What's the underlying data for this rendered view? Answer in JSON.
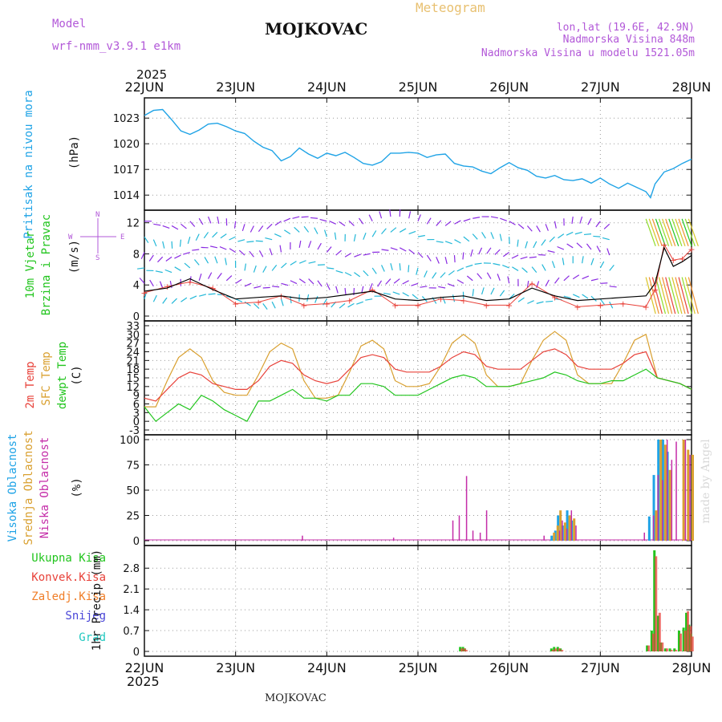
{
  "header": {
    "model_label": "Model",
    "model_name": "wrf-nmm_v3.9.1 e1km",
    "station": "MOJKOVAC",
    "product": "Meteogram",
    "coords": "lon,lat (19.6E, 42.9N)",
    "elevation": "Nadmorska Visina 848m",
    "model_elevation": "Nadmorska Visina u modelu 1521.05m"
  },
  "footer": {
    "station": "MOJKOVAC",
    "credit": "made by Angel"
  },
  "time_axis": {
    "year": "2025",
    "labels": [
      "22JUN",
      "23JUN",
      "24JUN",
      "25JUN",
      "26JUN",
      "27JUN",
      "28JUN"
    ]
  },
  "colors": {
    "pressure": "#1fa3e6",
    "wind_speed": "#000000",
    "wind_gust": "#e8423a",
    "t2m": "#e8423a",
    "sfc": "#d9a030",
    "dewpt": "#22c51e",
    "high_cloud": "#1fa3e6",
    "mid_cloud": "#d9a030",
    "low_cloud": "#c42ca8",
    "total_precip": "#22c51e",
    "conv_precip": "#e8423a",
    "frz_precip": "#f07e28",
    "snow": "#4a46d8",
    "hail": "#22c8c0"
  },
  "chart_data": [
    {
      "type": "line",
      "panel": "pressure",
      "ylabel": [
        "Pritisak na nivou mora",
        "(hPa)"
      ],
      "yticks": [
        1014,
        1017,
        1020,
        1023
      ],
      "ylim": [
        1012.8,
        1024.8
      ],
      "x_days": [
        0,
        0.1,
        0.2,
        0.3,
        0.4,
        0.5,
        0.6,
        0.7,
        0.8,
        0.9,
        1.0,
        1.1,
        1.2,
        1.3,
        1.4,
        1.5,
        1.6,
        1.7,
        1.8,
        1.9,
        2.0,
        2.1,
        2.2,
        2.3,
        2.4,
        2.5,
        2.6,
        2.7,
        2.8,
        2.9,
        3.0,
        3.1,
        3.2,
        3.3,
        3.4,
        3.5,
        3.6,
        3.7,
        3.8,
        3.9,
        4.0,
        4.1,
        4.2,
        4.3,
        4.4,
        4.5,
        4.6,
        4.7,
        4.8,
        4.9,
        5.0,
        5.1,
        5.2,
        5.3,
        5.4,
        5.5,
        5.55,
        5.6,
        5.7,
        5.8,
        5.9,
        6.0
      ],
      "series": [
        {
          "values": [
            1023.3,
            1023.9,
            1024.0,
            1022.8,
            1021.5,
            1021.1,
            1021.6,
            1022.3,
            1022.4,
            1022.0,
            1021.5,
            1021.2,
            1020.3,
            1019.6,
            1019.2,
            1018.0,
            1018.5,
            1019.5,
            1018.8,
            1018.3,
            1018.9,
            1018.6,
            1019.0,
            1018.4,
            1017.7,
            1017.5,
            1017.9,
            1018.9,
            1018.9,
            1019.0,
            1018.9,
            1018.4,
            1018.7,
            1018.8,
            1017.7,
            1017.4,
            1017.3,
            1016.8,
            1016.5,
            1017.2,
            1017.8,
            1017.2,
            1016.9,
            1016.2,
            1016.0,
            1016.3,
            1015.8,
            1015.7,
            1015.9,
            1015.4,
            1016.0,
            1015.3,
            1014.8,
            1015.4,
            1014.9,
            1014.4,
            1013.7,
            1015.3,
            1016.7,
            1017.1,
            1017.7,
            1018.2
          ]
        }
      ]
    },
    {
      "type": "line",
      "panel": "wind",
      "ylabel": [
        "10m Vjetar",
        "Brzina i Pravac",
        "(m/s)"
      ],
      "compass": [
        "N",
        "W",
        "E",
        "S"
      ],
      "yticks": [
        0,
        4,
        8,
        12
      ],
      "ylim": [
        0,
        13
      ],
      "x_days": [
        0,
        0.25,
        0.5,
        0.75,
        1.0,
        1.25,
        1.5,
        1.75,
        2.0,
        2.25,
        2.5,
        2.75,
        3.0,
        3.25,
        3.5,
        3.75,
        4.0,
        4.25,
        4.5,
        4.75,
        5.0,
        5.25,
        5.5,
        5.6,
        5.7,
        5.8,
        5.9,
        6.0
      ],
      "series": [
        {
          "role": "speed",
          "values": [
            3.2,
            3.6,
            4.8,
            3.4,
            2.2,
            2.4,
            2.6,
            2.2,
            2.4,
            2.8,
            3.2,
            2.2,
            2.0,
            2.4,
            2.6,
            2.0,
            2.2,
            3.6,
            2.6,
            2.0,
            2.2,
            2.4,
            2.6,
            4.2,
            8.8,
            6.4,
            7.0,
            7.8
          ]
        },
        {
          "role": "gust",
          "values": [
            3.0,
            3.8,
            4.4,
            3.6,
            1.6,
            1.8,
            2.6,
            1.4,
            1.6,
            2.0,
            3.4,
            1.4,
            1.4,
            2.2,
            2.0,
            1.4,
            1.4,
            4.2,
            2.4,
            1.2,
            1.4,
            1.6,
            1.2,
            3.4,
            9.2,
            7.2,
            7.4,
            8.6
          ]
        }
      ]
    },
    {
      "type": "line",
      "panel": "temperature",
      "ylabel": [
        "2m Temp",
        "SFC Temp",
        "dewpt Temp",
        "(C)"
      ],
      "yticks": [
        -3,
        0,
        3,
        6,
        9,
        12,
        15,
        18,
        21,
        24,
        27,
        30,
        33
      ],
      "ylim": [
        -3,
        33
      ],
      "x_days": [
        0,
        0.125,
        0.25,
        0.375,
        0.5,
        0.625,
        0.75,
        0.875,
        1.0,
        1.125,
        1.25,
        1.375,
        1.5,
        1.625,
        1.75,
        1.875,
        2.0,
        2.125,
        2.25,
        2.375,
        2.5,
        2.625,
        2.75,
        2.875,
        3.0,
        3.125,
        3.25,
        3.375,
        3.5,
        3.625,
        3.75,
        3.875,
        4.0,
        4.125,
        4.25,
        4.375,
        4.5,
        4.625,
        4.75,
        4.875,
        5.0,
        5.125,
        5.25,
        5.375,
        5.5,
        5.625,
        5.75,
        5.875,
        6.0
      ],
      "series": [
        {
          "role": "t2m",
          "values": [
            8,
            7,
            11,
            15,
            17,
            16,
            13,
            12,
            11,
            11,
            14,
            19,
            21,
            20,
            16,
            14,
            13,
            14,
            18,
            22,
            23,
            22,
            18,
            17,
            17,
            17,
            19,
            22,
            24,
            23,
            19,
            18,
            18,
            18,
            21,
            24,
            25,
            23,
            19,
            18,
            18,
            18,
            20,
            23,
            24,
            15,
            14,
            13,
            11
          ]
        },
        {
          "role": "sfc",
          "values": [
            5,
            5,
            14,
            22,
            25,
            22,
            14,
            10,
            9,
            9,
            16,
            24,
            27,
            25,
            14,
            8,
            8,
            9,
            17,
            26,
            28,
            25,
            14,
            12,
            12,
            13,
            19,
            27,
            30,
            27,
            16,
            12,
            12,
            13,
            21,
            28,
            31,
            28,
            16,
            13,
            13,
            13,
            20,
            28,
            30,
            15,
            14,
            13,
            11
          ]
        },
        {
          "role": "dewpt",
          "values": [
            5,
            0,
            3,
            6,
            4,
            9,
            7,
            4,
            2,
            0,
            7,
            7,
            9,
            11,
            8,
            8,
            7,
            9,
            9,
            13,
            13,
            12,
            9,
            9,
            9,
            11,
            13,
            15,
            16,
            15,
            12,
            12,
            12,
            13,
            14,
            15,
            17,
            16,
            14,
            13,
            13,
            14,
            14,
            16,
            18,
            15,
            14,
            13,
            11
          ]
        }
      ]
    },
    {
      "type": "bar",
      "panel": "cloud",
      "ylabel": [
        "Visoka Oblacnost",
        "Srednja Oblacnost",
        "Niska Oblacnost",
        "(%)"
      ],
      "yticks": [
        0,
        25,
        50,
        75,
        100
      ],
      "ylim": [
        0,
        100
      ],
      "x_days": [
        1.7,
        2.7,
        3.35,
        3.42,
        3.5,
        3.57,
        3.65,
        3.72,
        4.35,
        4.48,
        4.52,
        4.55,
        4.6,
        4.65,
        4.7,
        5.45,
        5.55,
        5.6,
        5.65,
        5.7,
        5.75,
        5.8,
        5.9,
        5.95,
        6.0
      ],
      "series": [
        {
          "role": "high",
          "values": [
            0,
            0,
            0,
            0,
            0,
            0,
            0,
            0,
            0,
            5,
            10,
            25,
            15,
            30,
            20,
            0,
            24,
            65,
            100,
            100,
            88,
            0,
            0,
            0,
            0
          ]
        },
        {
          "role": "mid",
          "values": [
            0,
            0,
            0,
            0,
            0,
            0,
            0,
            0,
            0,
            8,
            15,
            30,
            18,
            25,
            22,
            0,
            0,
            30,
            100,
            95,
            70,
            0,
            100,
            90,
            85
          ]
        },
        {
          "role": "low",
          "values": [
            5,
            3,
            20,
            25,
            64,
            10,
            8,
            30,
            5,
            0,
            10,
            20,
            12,
            30,
            15,
            8,
            25,
            65,
            60,
            100,
            80,
            98,
            100,
            85,
            0
          ]
        }
      ]
    },
    {
      "type": "bar",
      "panel": "precip",
      "ylabel": [
        "1hr Precip (mm)"
      ],
      "legend": [
        "Ukupna Kisa",
        "Konvek.Kisa",
        "Zaledj.Kisa",
        "Snijeg",
        "Grad"
      ],
      "yticks": [
        0,
        0.7,
        1.4,
        2.1,
        2.8
      ],
      "ylim": [
        0,
        3.4
      ],
      "x_days": [
        3.45,
        3.48,
        3.5,
        4.45,
        4.48,
        4.52,
        4.55,
        5.5,
        5.55,
        5.58,
        5.62,
        5.65,
        5.7,
        5.75,
        5.8,
        5.85,
        5.9,
        5.93,
        5.96,
        5.98
      ],
      "series": [
        {
          "role": "total",
          "values": [
            0.15,
            0.15,
            0.1,
            0.1,
            0.15,
            0.15,
            0.1,
            0.2,
            0.7,
            3.4,
            1.2,
            0.3,
            0.1,
            0.1,
            0.1,
            0.7,
            0.8,
            1.3,
            0.9,
            0.6
          ]
        },
        {
          "role": "convective",
          "values": [
            0.1,
            0.1,
            0.05,
            0.05,
            0.1,
            0.1,
            0.05,
            0.2,
            0.6,
            3.2,
            1.3,
            0.3,
            0.1,
            0.05,
            0.05,
            0.6,
            0.7,
            1.35,
            0.85,
            0.5
          ]
        }
      ]
    }
  ]
}
